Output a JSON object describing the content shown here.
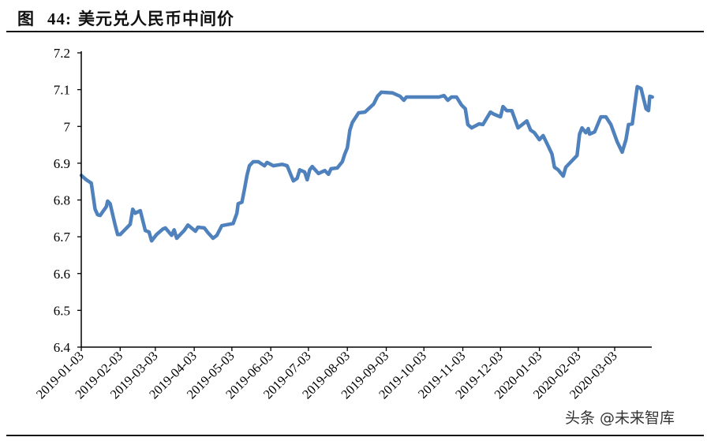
{
  "title": {
    "label": "图",
    "number": "44:",
    "text": "美元兑人民币中间价"
  },
  "watermark": "头条 @未来智库",
  "chart_data": {
    "type": "line",
    "title": "美元兑人民币中间价",
    "xlabel": "",
    "ylabel": "",
    "ylim": [
      6.4,
      7.2
    ],
    "xlim": [
      "2019-01-03",
      "2020-04-02"
    ],
    "yticks": [
      "6.4",
      "6.5",
      "6.6",
      "6.7",
      "6.8",
      "6.9",
      "7",
      "7.1",
      "7.2"
    ],
    "xticks": [
      "2019-01-03",
      "2019-02-03",
      "2019-03-03",
      "2019-04-03",
      "2019-05-03",
      "2019-06-03",
      "2019-07-03",
      "2019-08-03",
      "2019-09-03",
      "2019-10-03",
      "2019-11-03",
      "2019-12-03",
      "2020-01-03",
      "2020-02-03",
      "2020-03-03"
    ],
    "grid": false,
    "line_color": "#4f81bd",
    "series": [
      {
        "points": [
          [
            "2019-01-03",
            6.867
          ],
          [
            "2019-01-07",
            6.855
          ],
          [
            "2019-01-11",
            6.846
          ],
          [
            "2019-01-14",
            6.775
          ],
          [
            "2019-01-16",
            6.76
          ],
          [
            "2019-01-18",
            6.758
          ],
          [
            "2019-01-23",
            6.782
          ],
          [
            "2019-01-24",
            6.797
          ],
          [
            "2019-01-26",
            6.79
          ],
          [
            "2019-01-30",
            6.732
          ],
          [
            "2019-02-01",
            6.706
          ],
          [
            "2019-02-03",
            6.706
          ],
          [
            "2019-02-11",
            6.734
          ],
          [
            "2019-02-13",
            6.775
          ],
          [
            "2019-02-15",
            6.764
          ],
          [
            "2019-02-19",
            6.771
          ],
          [
            "2019-02-23",
            6.717
          ],
          [
            "2019-02-26",
            6.713
          ],
          [
            "2019-02-28",
            6.689
          ],
          [
            "2019-03-04",
            6.706
          ],
          [
            "2019-03-09",
            6.721
          ],
          [
            "2019-03-11",
            6.724
          ],
          [
            "2019-03-16",
            6.704
          ],
          [
            "2019-03-18",
            6.719
          ],
          [
            "2019-03-20",
            6.696
          ],
          [
            "2019-03-26",
            6.717
          ],
          [
            "2019-03-29",
            6.732
          ],
          [
            "2019-04-04",
            6.715
          ],
          [
            "2019-04-06",
            6.726
          ],
          [
            "2019-04-11",
            6.724
          ],
          [
            "2019-04-14",
            6.711
          ],
          [
            "2019-04-18",
            6.696
          ],
          [
            "2019-04-21",
            6.704
          ],
          [
            "2019-04-25",
            6.73
          ],
          [
            "2019-05-04",
            6.736
          ],
          [
            "2019-05-07",
            6.764
          ],
          [
            "2019-05-08",
            6.79
          ],
          [
            "2019-05-11",
            6.794
          ],
          [
            "2019-05-13",
            6.829
          ],
          [
            "2019-05-15",
            6.867
          ],
          [
            "2019-05-17",
            6.893
          ],
          [
            "2019-05-20",
            6.904
          ],
          [
            "2019-05-24",
            6.904
          ],
          [
            "2019-05-29",
            6.893
          ],
          [
            "2019-05-31",
            6.902
          ],
          [
            "2019-06-05",
            6.893
          ],
          [
            "2019-06-12",
            6.897
          ],
          [
            "2019-06-16",
            6.893
          ],
          [
            "2019-06-21",
            6.852
          ],
          [
            "2019-06-24",
            6.859
          ],
          [
            "2019-06-26",
            6.882
          ],
          [
            "2019-06-30",
            6.876
          ],
          [
            "2019-07-02",
            6.855
          ],
          [
            "2019-07-04",
            6.882
          ],
          [
            "2019-07-06",
            6.891
          ],
          [
            "2019-07-11",
            6.872
          ],
          [
            "2019-07-16",
            6.88
          ],
          [
            "2019-07-19",
            6.87
          ],
          [
            "2019-07-21",
            6.885
          ],
          [
            "2019-07-26",
            6.887
          ],
          [
            "2019-07-30",
            6.904
          ],
          [
            "2019-08-01",
            6.925
          ],
          [
            "2019-08-03",
            6.942
          ],
          [
            "2019-08-05",
            6.99
          ],
          [
            "2019-08-07",
            7.011
          ],
          [
            "2019-08-12",
            7.037
          ],
          [
            "2019-08-17",
            7.039
          ],
          [
            "2019-08-24",
            7.061
          ],
          [
            "2019-08-27",
            7.082
          ],
          [
            "2019-08-30",
            7.093
          ],
          [
            "2019-09-08",
            7.091
          ],
          [
            "2019-09-14",
            7.082
          ],
          [
            "2019-09-17",
            7.071
          ],
          [
            "2019-09-19",
            7.08
          ],
          [
            "2019-10-15",
            7.08
          ],
          [
            "2019-10-19",
            7.084
          ],
          [
            "2019-10-22",
            7.071
          ],
          [
            "2019-10-25",
            7.08
          ],
          [
            "2019-10-29",
            7.08
          ],
          [
            "2019-11-02",
            7.058
          ],
          [
            "2019-11-05",
            7.048
          ],
          [
            "2019-11-07",
            7.005
          ],
          [
            "2019-11-10",
            6.996
          ],
          [
            "2019-11-16",
            7.007
          ],
          [
            "2019-11-19",
            7.005
          ],
          [
            "2019-11-25",
            7.039
          ],
          [
            "2019-11-28",
            7.033
          ],
          [
            "2019-12-03",
            7.026
          ],
          [
            "2019-12-05",
            7.054
          ],
          [
            "2019-12-08",
            7.043
          ],
          [
            "2019-12-12",
            7.043
          ],
          [
            "2019-12-17",
            6.996
          ],
          [
            "2019-12-24",
            7.015
          ],
          [
            "2019-12-27",
            6.99
          ],
          [
            "2019-12-30",
            6.983
          ],
          [
            "2020-01-03",
            6.964
          ],
          [
            "2020-01-06",
            6.975
          ],
          [
            "2020-01-10",
            6.947
          ],
          [
            "2020-01-13",
            6.925
          ],
          [
            "2020-01-15",
            6.889
          ],
          [
            "2020-01-18",
            6.882
          ],
          [
            "2020-01-22",
            6.865
          ],
          [
            "2020-01-24",
            6.889
          ],
          [
            "2020-02-02",
            6.921
          ],
          [
            "2020-02-04",
            6.979
          ],
          [
            "2020-02-06",
            6.996
          ],
          [
            "2020-02-09",
            6.983
          ],
          [
            "2020-02-11",
            6.994
          ],
          [
            "2020-02-12",
            6.979
          ],
          [
            "2020-02-16",
            6.985
          ],
          [
            "2020-02-21",
            7.026
          ],
          [
            "2020-02-25",
            7.026
          ],
          [
            "2020-02-29",
            7.005
          ],
          [
            "2020-03-05",
            6.958
          ],
          [
            "2020-03-09",
            6.93
          ],
          [
            "2020-03-12",
            6.964
          ],
          [
            "2020-03-14",
            7.005
          ],
          [
            "2020-03-17",
            7.007
          ],
          [
            "2020-03-21",
            7.108
          ],
          [
            "2020-03-24",
            7.103
          ],
          [
            "2020-03-28",
            7.048
          ],
          [
            "2020-03-30",
            7.043
          ],
          [
            "2020-03-31",
            7.082
          ],
          [
            "2020-04-02",
            7.08
          ]
        ]
      }
    ]
  }
}
